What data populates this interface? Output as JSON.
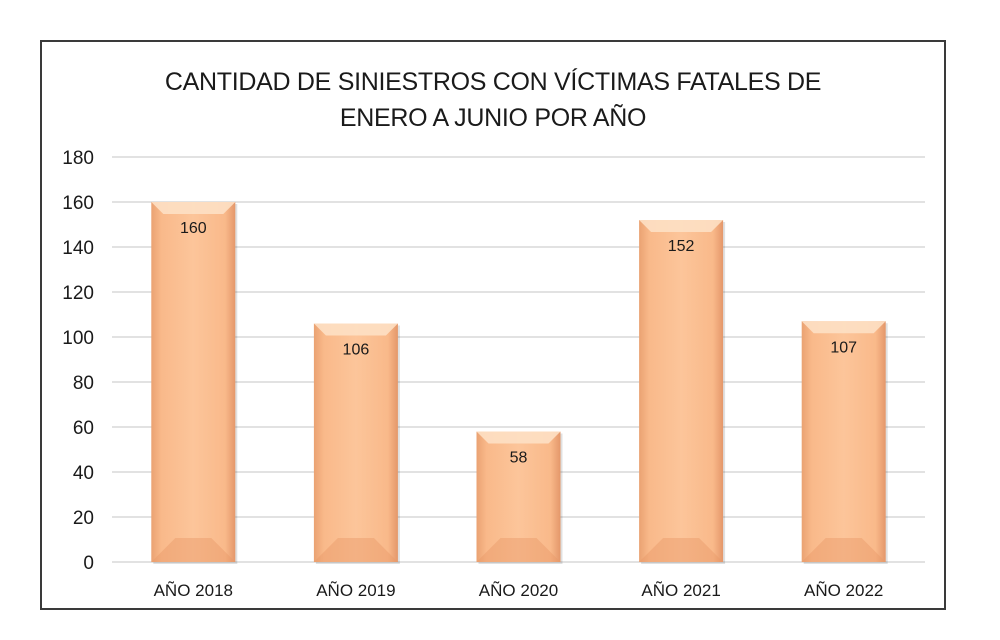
{
  "chart_data": {
    "type": "bar",
    "title_lines": [
      "CANTIDAD DE SINIESTROS CON VÍCTIMAS FATALES DE",
      "ENERO A JUNIO POR AÑO"
    ],
    "categories": [
      "AÑO 2018",
      "AÑO 2019",
      "AÑO 2020",
      "AÑO 2021",
      "AÑO 2022"
    ],
    "values": [
      160,
      106,
      58,
      152,
      107
    ],
    "data_labels": [
      "160",
      "106",
      "58",
      "152",
      "107"
    ],
    "xlabel": "",
    "ylabel": "",
    "ylim": [
      0,
      180
    ],
    "yticks": [
      0,
      20,
      40,
      60,
      80,
      100,
      120,
      140,
      160,
      180
    ],
    "ytick_labels": [
      "0",
      "20",
      "40",
      "60",
      "80",
      "100",
      "120",
      "140",
      "160",
      "180"
    ],
    "grid": true,
    "legend": "none",
    "colors": {
      "bar": "#f9b98a",
      "bar_light": "#fde0c4",
      "bar_dark": "#e89a68",
      "grid": "#d9d9d9",
      "text": "#1a1a1a"
    }
  }
}
